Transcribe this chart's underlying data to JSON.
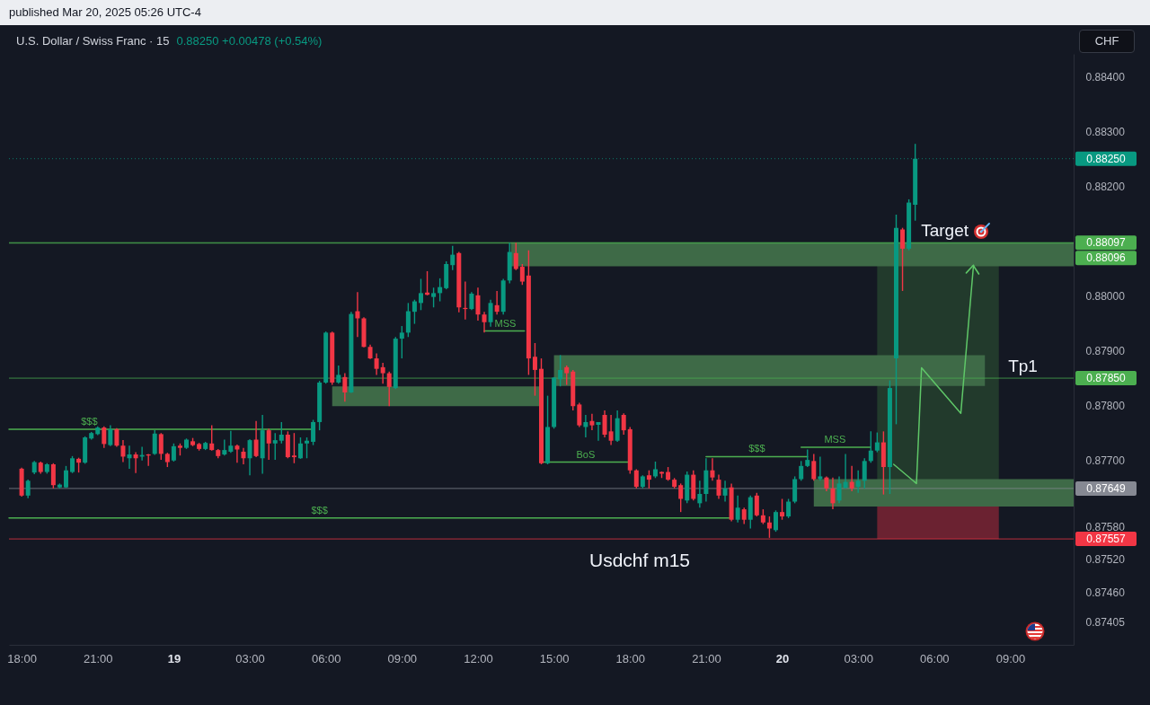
{
  "chart_data": {
    "type": "candlestick",
    "title": "U.S. Dollar / Swiss Franc · 15",
    "subtitle": "0.88250 +0.00478 (+0.54%)",
    "ylabel": "CHF",
    "xlim": [
      "2025-03-18T17:30",
      "2025-03-20T11:30"
    ],
    "ylim": [
      0.87364,
      0.88441
    ],
    "xticks": [
      {
        "value": "2025-03-18T18:00",
        "label": "18:00"
      },
      {
        "value": "2025-03-18T21:00",
        "label": "21:00"
      },
      {
        "value": "2025-03-19T00:00",
        "label": "19"
      },
      {
        "value": "2025-03-19T03:00",
        "label": "03:00"
      },
      {
        "value": "2025-03-19T06:00",
        "label": "06:00"
      },
      {
        "value": "2025-03-19T09:00",
        "label": "09:00"
      },
      {
        "value": "2025-03-19T12:00",
        "label": "12:00"
      },
      {
        "value": "2025-03-19T15:00",
        "label": "15:00"
      },
      {
        "value": "2025-03-19T18:00",
        "label": "18:00"
      },
      {
        "value": "2025-03-19T21:00",
        "label": "21:00"
      },
      {
        "value": "2025-03-20T00:00",
        "label": "20"
      },
      {
        "value": "2025-03-20T03:00",
        "label": "03:00"
      },
      {
        "value": "2025-03-20T06:00",
        "label": "06:00"
      },
      {
        "value": "2025-03-20T09:00",
        "label": "09:00"
      }
    ],
    "yticks": [
      {
        "value": 0.87405,
        "label": "0.87405"
      },
      {
        "value": 0.8746,
        "label": "0.87460"
      },
      {
        "value": 0.8752,
        "label": "0.87520"
      },
      {
        "value": 0.8758,
        "label": "0.87580"
      },
      {
        "value": 0.877,
        "label": "0.87700"
      },
      {
        "value": 0.878,
        "label": "0.87800"
      },
      {
        "value": 0.879,
        "label": "0.87900"
      },
      {
        "value": 0.88,
        "label": "0.88000"
      },
      {
        "value": 0.882,
        "label": "0.88200"
      },
      {
        "value": 0.883,
        "label": "0.88300"
      },
      {
        "value": 0.884,
        "label": "0.88400"
      }
    ],
    "x": [
      "2025-03-18T18:00",
      "2025-03-18T18:15",
      "2025-03-18T18:30",
      "2025-03-18T18:45",
      "2025-03-18T19:00",
      "2025-03-18T19:15",
      "2025-03-18T19:30",
      "2025-03-18T19:45",
      "2025-03-18T20:00",
      "2025-03-18T20:15",
      "2025-03-18T20:30",
      "2025-03-18T20:45",
      "2025-03-18T21:00",
      "2025-03-18T21:15",
      "2025-03-18T21:30",
      "2025-03-18T21:45",
      "2025-03-18T22:00",
      "2025-03-18T22:15",
      "2025-03-18T22:30",
      "2025-03-18T22:45",
      "2025-03-18T23:00",
      "2025-03-18T23:15",
      "2025-03-18T23:30",
      "2025-03-18T23:45",
      "2025-03-19T00:00",
      "2025-03-19T00:15",
      "2025-03-19T00:30",
      "2025-03-19T00:45",
      "2025-03-19T01:00",
      "2025-03-19T01:15",
      "2025-03-19T01:30",
      "2025-03-19T01:45",
      "2025-03-19T02:00",
      "2025-03-19T02:15",
      "2025-03-19T02:30",
      "2025-03-19T02:45",
      "2025-03-19T03:00",
      "2025-03-19T03:15",
      "2025-03-19T03:30",
      "2025-03-19T03:45",
      "2025-03-19T04:00",
      "2025-03-19T04:15",
      "2025-03-19T04:30",
      "2025-03-19T04:45",
      "2025-03-19T05:00",
      "2025-03-19T05:15",
      "2025-03-19T05:30",
      "2025-03-19T05:45",
      "2025-03-19T06:00",
      "2025-03-19T06:15",
      "2025-03-19T06:30",
      "2025-03-19T06:45",
      "2025-03-19T07:00",
      "2025-03-19T07:15",
      "2025-03-19T07:30",
      "2025-03-19T07:45",
      "2025-03-19T08:00",
      "2025-03-19T08:15",
      "2025-03-19T08:30",
      "2025-03-19T08:45",
      "2025-03-19T09:00",
      "2025-03-19T09:15",
      "2025-03-19T09:30",
      "2025-03-19T09:45",
      "2025-03-19T10:00",
      "2025-03-19T10:15",
      "2025-03-19T10:30",
      "2025-03-19T10:45",
      "2025-03-19T11:00",
      "2025-03-19T11:15",
      "2025-03-19T11:30",
      "2025-03-19T11:45",
      "2025-03-19T12:00",
      "2025-03-19T12:15",
      "2025-03-19T12:30",
      "2025-03-19T12:45",
      "2025-03-19T13:00",
      "2025-03-19T13:15",
      "2025-03-19T13:30",
      "2025-03-19T13:45",
      "2025-03-19T14:00",
      "2025-03-19T14:15",
      "2025-03-19T14:30",
      "2025-03-19T14:45",
      "2025-03-19T15:00",
      "2025-03-19T15:15",
      "2025-03-19T15:30",
      "2025-03-19T15:45",
      "2025-03-19T16:00",
      "2025-03-19T16:15",
      "2025-03-19T16:30",
      "2025-03-19T16:45",
      "2025-03-19T17:00",
      "2025-03-19T17:15",
      "2025-03-19T17:30",
      "2025-03-19T17:45",
      "2025-03-19T18:00",
      "2025-03-19T18:15",
      "2025-03-19T18:30",
      "2025-03-19T18:45",
      "2025-03-19T19:00",
      "2025-03-19T19:15",
      "2025-03-19T19:30",
      "2025-03-19T19:45",
      "2025-03-19T20:00",
      "2025-03-19T20:15",
      "2025-03-19T20:30",
      "2025-03-19T20:45",
      "2025-03-19T21:00",
      "2025-03-19T21:15",
      "2025-03-19T21:30",
      "2025-03-19T21:45",
      "2025-03-19T22:00",
      "2025-03-19T22:15",
      "2025-03-19T22:30",
      "2025-03-19T22:45",
      "2025-03-19T23:00",
      "2025-03-19T23:15",
      "2025-03-19T23:30",
      "2025-03-19T23:45",
      "2025-03-20T00:00",
      "2025-03-20T00:15",
      "2025-03-20T00:30",
      "2025-03-20T00:45",
      "2025-03-20T01:00",
      "2025-03-20T01:15",
      "2025-03-20T01:30",
      "2025-03-20T01:45",
      "2025-03-20T02:00",
      "2025-03-20T02:15",
      "2025-03-20T02:30",
      "2025-03-20T02:45",
      "2025-03-20T03:00",
      "2025-03-20T03:15",
      "2025-03-20T03:30",
      "2025-03-20T03:45",
      "2025-03-20T04:00",
      "2025-03-20T04:15",
      "2025-03-20T04:30",
      "2025-03-20T04:45",
      "2025-03-20T05:00",
      "2025-03-20T05:15"
    ],
    "ohlc": [
      [
        0.87685,
        0.87687,
        0.87634,
        0.87636
      ],
      [
        0.87636,
        0.87665,
        0.87631,
        0.87663
      ],
      [
        0.87678,
        0.87699,
        0.87675,
        0.87697
      ],
      [
        0.87696,
        0.87698,
        0.87676,
        0.87679
      ],
      [
        0.87679,
        0.87695,
        0.87676,
        0.87693
      ],
      [
        0.87693,
        0.87695,
        0.87649,
        0.87655
      ],
      [
        0.87651,
        0.87658,
        0.87649,
        0.87656
      ],
      [
        0.87651,
        0.8769,
        0.8765,
        0.87682
      ],
      [
        0.87679,
        0.87708,
        0.87677,
        0.87704
      ],
      [
        0.87703,
        0.87705,
        0.87678,
        0.87696
      ],
      [
        0.87696,
        0.87744,
        0.87694,
        0.87742
      ],
      [
        0.8774,
        0.87752,
        0.87738,
        0.8775
      ],
      [
        0.87748,
        0.87762,
        0.87746,
        0.8776
      ],
      [
        0.8776,
        0.87762,
        0.87723,
        0.8773
      ],
      [
        0.87728,
        0.87764,
        0.87726,
        0.87757
      ],
      [
        0.87757,
        0.87759,
        0.87725,
        0.87727
      ],
      [
        0.87727,
        0.87737,
        0.87697,
        0.87707
      ],
      [
        0.87704,
        0.87727,
        0.87685,
        0.87711
      ],
      [
        0.87711,
        0.87715,
        0.87677,
        0.87704
      ],
      [
        0.87707,
        0.87725,
        0.877,
        0.8771
      ],
      [
        0.87711,
        0.87712,
        0.8769,
        0.87709
      ],
      [
        0.87712,
        0.87755,
        0.8771,
        0.87749
      ],
      [
        0.87748,
        0.8775,
        0.87701,
        0.87712
      ],
      [
        0.87712,
        0.87714,
        0.87688,
        0.87697
      ],
      [
        0.877,
        0.87731,
        0.87698,
        0.87726
      ],
      [
        0.87727,
        0.87731,
        0.87709,
        0.87723
      ],
      [
        0.87723,
        0.8774,
        0.87721,
        0.87738
      ],
      [
        0.87735,
        0.87741,
        0.87726,
        0.87728
      ],
      [
        0.8773,
        0.87732,
        0.87718,
        0.87721
      ],
      [
        0.87721,
        0.87734,
        0.87719,
        0.87732
      ],
      [
        0.87731,
        0.87764,
        0.87718,
        0.87719
      ],
      [
        0.87719,
        0.87721,
        0.87704,
        0.87708
      ],
      [
        0.87711,
        0.87738,
        0.87709,
        0.87719
      ],
      [
        0.87716,
        0.87754,
        0.87714,
        0.87727
      ],
      [
        0.87727,
        0.87729,
        0.87696,
        0.8772
      ],
      [
        0.87716,
        0.87723,
        0.87693,
        0.87704
      ],
      [
        0.87704,
        0.87739,
        0.87673,
        0.87737
      ],
      [
        0.87738,
        0.87772,
        0.87706,
        0.87708
      ],
      [
        0.87704,
        0.87783,
        0.87676,
        0.87755
      ],
      [
        0.87755,
        0.87758,
        0.87701,
        0.87731
      ],
      [
        0.87731,
        0.8775,
        0.87701,
        0.87737
      ],
      [
        0.87736,
        0.8777,
        0.87731,
        0.87747
      ],
      [
        0.87747,
        0.87753,
        0.87704,
        0.87706
      ],
      [
        0.87709,
        0.8775,
        0.87695,
        0.87706
      ],
      [
        0.87704,
        0.87742,
        0.87703,
        0.87731
      ],
      [
        0.87731,
        0.87742,
        0.87704,
        0.87736
      ],
      [
        0.87734,
        0.87774,
        0.87728,
        0.8777
      ],
      [
        0.8777,
        0.87845,
        0.87755,
        0.87842
      ],
      [
        0.87842,
        0.87935,
        0.8784,
        0.87933
      ],
      [
        0.87933,
        0.87935,
        0.87838,
        0.87842
      ],
      [
        0.87842,
        0.87873,
        0.8784,
        0.87856
      ],
      [
        0.87852,
        0.87859,
        0.87807,
        0.87824
      ],
      [
        0.87824,
        0.87971,
        0.87823,
        0.87967
      ],
      [
        0.87972,
        0.88007,
        0.87925,
        0.87959
      ],
      [
        0.87959,
        0.87961,
        0.87906,
        0.87907
      ],
      [
        0.87907,
        0.87911,
        0.87885,
        0.87886
      ],
      [
        0.87886,
        0.87895,
        0.87856,
        0.87867
      ],
      [
        0.8787,
        0.87878,
        0.8784,
        0.87859
      ],
      [
        0.87859,
        0.87862,
        0.87799,
        0.87834
      ],
      [
        0.87832,
        0.87925,
        0.8783,
        0.87922
      ],
      [
        0.87922,
        0.87945,
        0.87886,
        0.87933
      ],
      [
        0.87933,
        0.87987,
        0.87925,
        0.87972
      ],
      [
        0.87971,
        0.87993,
        0.87949,
        0.8799
      ],
      [
        0.87987,
        0.88031,
        0.87974,
        0.88005
      ],
      [
        0.88006,
        0.88045,
        0.88001,
        0.88002
      ],
      [
        0.87998,
        0.88015,
        0.87979,
        0.88005
      ],
      [
        0.88005,
        0.88032,
        0.8799,
        0.88016
      ],
      [
        0.88014,
        0.88063,
        0.88012,
        0.88058
      ],
      [
        0.88056,
        0.88091,
        0.88047,
        0.88075
      ],
      [
        0.88078,
        0.8808,
        0.8797,
        0.87979
      ],
      [
        0.87978,
        0.88026,
        0.87957,
        0.87976
      ],
      [
        0.87976,
        0.88007,
        0.87974,
        0.88004
      ],
      [
        0.88001,
        0.88015,
        0.87955,
        0.87966
      ],
      [
        0.87966,
        0.87971,
        0.87933,
        0.87952
      ],
      [
        0.87952,
        0.87993,
        0.87944,
        0.87987
      ],
      [
        0.87983,
        0.88009,
        0.87966,
        0.87971
      ],
      [
        0.87971,
        0.88031,
        0.87966,
        0.88028
      ],
      [
        0.88028,
        0.88097,
        0.88023,
        0.8808
      ],
      [
        0.88078,
        0.88097,
        0.88047,
        0.88049
      ],
      [
        0.88053,
        0.88058,
        0.8802,
        0.88026
      ],
      [
        0.88037,
        0.88083,
        0.87856,
        0.87886
      ],
      [
        0.87889,
        0.87914,
        0.87818,
        0.87865
      ],
      [
        0.87867,
        0.87886,
        0.87693,
        0.87695
      ],
      [
        0.87695,
        0.87818,
        0.87693,
        0.87761
      ],
      [
        0.87761,
        0.87852,
        0.87758,
        0.87851
      ],
      [
        0.87848,
        0.87892,
        0.87835,
        0.87865
      ],
      [
        0.8787,
        0.87873,
        0.87838,
        0.87859
      ],
      [
        0.87862,
        0.87865,
        0.87791,
        0.87799
      ],
      [
        0.87802,
        0.87805,
        0.87761,
        0.87764
      ],
      [
        0.87761,
        0.87783,
        0.87742,
        0.8777
      ],
      [
        0.87772,
        0.87785,
        0.87755,
        0.87764
      ],
      [
        0.87765,
        0.8777,
        0.87736,
        0.8777
      ],
      [
        0.87783,
        0.87791,
        0.87742,
        0.87747
      ],
      [
        0.87753,
        0.87783,
        0.87728,
        0.87736
      ],
      [
        0.87736,
        0.87791,
        0.87734,
        0.87777
      ],
      [
        0.87783,
        0.87786,
        0.87747,
        0.87755
      ],
      [
        0.87757,
        0.87761,
        0.87676,
        0.87682
      ],
      [
        0.87682,
        0.87684,
        0.87649,
        0.87652
      ],
      [
        0.87652,
        0.87673,
        0.87649,
        0.87671
      ],
      [
        0.87673,
        0.87682,
        0.87649,
        0.87665
      ],
      [
        0.87671,
        0.87698,
        0.87668,
        0.87684
      ],
      [
        0.87679,
        0.8768,
        0.87668,
        0.87676
      ],
      [
        0.87679,
        0.87688,
        0.87663,
        0.87665
      ],
      [
        0.87665,
        0.87668,
        0.87649,
        0.87652
      ],
      [
        0.87655,
        0.87658,
        0.87606,
        0.8763
      ],
      [
        0.87627,
        0.8768,
        0.87622,
        0.87674
      ],
      [
        0.87674,
        0.87682,
        0.87627,
        0.8763
      ],
      [
        0.87622,
        0.87663,
        0.87614,
        0.87639
      ],
      [
        0.87639,
        0.87704,
        0.87625,
        0.87682
      ],
      [
        0.87682,
        0.87704,
        0.87663,
        0.87669
      ],
      [
        0.87665,
        0.87674,
        0.8763,
        0.87636
      ],
      [
        0.87636,
        0.87663,
        0.87625,
        0.87649
      ],
      [
        0.87651,
        0.87658,
        0.87589,
        0.87592
      ],
      [
        0.87592,
        0.87636,
        0.87587,
        0.87614
      ],
      [
        0.87611,
        0.87614,
        0.87584,
        0.87592
      ],
      [
        0.87592,
        0.87636,
        0.87576,
        0.87633
      ],
      [
        0.87636,
        0.87641,
        0.87598,
        0.876
      ],
      [
        0.876,
        0.87611,
        0.87584,
        0.87587
      ],
      [
        0.87587,
        0.87598,
        0.87559,
        0.87576
      ],
      [
        0.87573,
        0.87609,
        0.8757,
        0.87606
      ],
      [
        0.87606,
        0.8763,
        0.87592,
        0.87598
      ],
      [
        0.87598,
        0.8763,
        0.87595,
        0.87625
      ],
      [
        0.87625,
        0.87671,
        0.87622,
        0.87666
      ],
      [
        0.87666,
        0.87699,
        0.87663,
        0.8769
      ],
      [
        0.8769,
        0.8772,
        0.87688,
        0.87701
      ],
      [
        0.87699,
        0.87712,
        0.87663,
        0.87666
      ],
      [
        0.87666,
        0.87707,
        0.87663,
        0.87671
      ],
      [
        0.87669,
        0.87671,
        0.87644,
        0.87649
      ],
      [
        0.87649,
        0.87669,
        0.87611,
        0.87622
      ],
      [
        0.87627,
        0.87671,
        0.87622,
        0.87658
      ],
      [
        0.8765,
        0.87712,
        0.87649,
        0.87661
      ],
      [
        0.87661,
        0.8769,
        0.87644,
        0.87649
      ],
      [
        0.87652,
        0.87682,
        0.87641,
        0.87663
      ],
      [
        0.87663,
        0.87704,
        0.87649,
        0.87699
      ],
      [
        0.87699,
        0.87753,
        0.87696,
        0.87718
      ],
      [
        0.87718,
        0.87751,
        0.87715,
        0.87733
      ],
      [
        0.87733,
        0.87753,
        0.87638,
        0.87688
      ],
      [
        0.87688,
        0.87846,
        0.87639,
        0.87832
      ],
      [
        0.87886,
        0.88148,
        0.87766,
        0.88124
      ],
      [
        0.88121,
        0.88124,
        0.88009,
        0.88086
      ],
      [
        0.88086,
        0.88176,
        0.88083,
        0.8817
      ],
      [
        0.88166,
        0.88277,
        0.88137,
        0.8825
      ]
    ],
    "colors": [
      "#f23645",
      "#089981",
      "#089981",
      "#f23645",
      "#089981",
      "#f23645",
      "#089981",
      "#089981",
      "#089981",
      "#f23645",
      "#089981",
      "#089981",
      "#089981",
      "#f23645",
      "#089981",
      "#f23645",
      "#f23645",
      "#089981",
      "#f23645",
      "#089981",
      "#f23645",
      "#089981",
      "#f23645",
      "#f23645",
      "#089981",
      "#f23645",
      "#089981",
      "#f23645",
      "#f23645",
      "#089981",
      "#f23645",
      "#f23645",
      "#089981",
      "#089981",
      "#f23645",
      "#f23645",
      "#089981",
      "#f23645",
      "#089981",
      "#f23645",
      "#089981",
      "#089981",
      "#f23645",
      "#f23645",
      "#089981",
      "#089981",
      "#089981",
      "#089981",
      "#089981",
      "#f23645",
      "#089981",
      "#f23645",
      "#089981",
      "#f23645",
      "#f23645",
      "#f23645",
      "#f23645",
      "#f23645",
      "#f23645",
      "#089981",
      "#089981",
      "#089981",
      "#089981",
      "#089981",
      "#f23645",
      "#089981",
      "#089981",
      "#089981",
      "#089981",
      "#f23645",
      "#f23645",
      "#089981",
      "#f23645",
      "#f23645",
      "#089981",
      "#f23645",
      "#089981",
      "#089981",
      "#f23645",
      "#f23645",
      "#f23645",
      "#f23645",
      "#f23645",
      "#089981",
      "#089981",
      "#089981",
      "#f23645",
      "#f23645",
      "#f23645",
      "#089981",
      "#f23645",
      "#089981",
      "#f23645",
      "#f23645",
      "#089981",
      "#f23645",
      "#f23645",
      "#f23645",
      "#089981",
      "#f23645",
      "#089981",
      "#f23645",
      "#f23645",
      "#f23645",
      "#f23645",
      "#089981",
      "#f23645",
      "#089981",
      "#089981",
      "#f23645",
      "#f23645",
      "#089981",
      "#f23645",
      "#089981",
      "#f23645",
      "#089981",
      "#f23645",
      "#f23645",
      "#f23645",
      "#089981",
      "#f23645",
      "#089981",
      "#089981",
      "#089981",
      "#089981",
      "#f23645",
      "#089981",
      "#f23645",
      "#f23645",
      "#089981",
      "#089981",
      "#f23645",
      "#089981",
      "#089981",
      "#089981",
      "#089981",
      "#f23645",
      "#089981",
      "#089981",
      "#f23645",
      "#089981",
      "#089981"
    ],
    "series": [
      {
        "type": "area",
        "color": "#223a2c",
        "x": [
          "2025-03-20T03:45",
          "2025-03-20T08:33"
        ],
        "values": [
          null,
          null
        ],
        "lower": [
          0.87649,
          0.87649
        ],
        "upper": [
          0.88097,
          0.88097
        ]
      },
      {
        "type": "area",
        "color": "#6b2231",
        "x": [
          "2025-03-20T03:45",
          "2025-03-20T08:33"
        ],
        "values": [
          null,
          null
        ],
        "lower": [
          0.87557,
          0.87557
        ],
        "upper": [
          0.87649,
          0.87649
        ]
      },
      {
        "type": "area",
        "color": "#3e6a47",
        "x": [
          "2025-03-19T06:15",
          "2025-03-19T14:25"
        ],
        "values": [
          null,
          null
        ],
        "lower": [
          0.87799,
          0.87799
        ],
        "upper": [
          0.87835,
          0.87835
        ]
      },
      {
        "type": "area",
        "color": "#3e6a47",
        "x": [
          "2025-03-19T13:18",
          "2025-03-20T11:30"
        ],
        "values": [
          null,
          null
        ],
        "lower": [
          0.88054,
          0.88054
        ],
        "upper": [
          0.88097,
          0.88097
        ]
      },
      {
        "type": "area",
        "color": "#3e6a47",
        "x": [
          "2025-03-19T15:00",
          "2025-03-20T08:00"
        ],
        "values": [
          null,
          null
        ],
        "lower": [
          0.87836,
          0.87836
        ],
        "upper": [
          0.87892,
          0.87892
        ]
      },
      {
        "type": "area",
        "color": "#3e6a47",
        "x": [
          "2025-03-20T01:15",
          "2025-03-20T11:30"
        ],
        "values": [
          null,
          null
        ],
        "lower": [
          0.87616,
          0.87616
        ],
        "upper": [
          0.87666,
          0.87666
        ]
      },
      {
        "type": "line",
        "color": "#4caf50",
        "x": [
          "2025-03-18T17:30",
          "2025-03-19T05:30"
        ],
        "values": [
          0.87757,
          0.87757
        ]
      },
      {
        "type": "line",
        "color": "#4caf50",
        "x": [
          "2025-03-18T17:30",
          "2025-03-19T22:00"
        ],
        "values": [
          0.87595,
          0.87595
        ]
      },
      {
        "type": "line",
        "color": "#4caf50",
        "x": [
          "2025-03-19T12:15",
          "2025-03-19T13:50"
        ],
        "values": [
          0.87936,
          0.87936
        ]
      },
      {
        "type": "line",
        "color": "#4caf50",
        "x": [
          "2025-03-19T14:30",
          "2025-03-19T18:00"
        ],
        "values": [
          0.87697,
          0.87697
        ]
      },
      {
        "type": "line",
        "color": "#4caf50",
        "x": [
          "2025-03-19T21:00",
          "2025-03-20T01:00"
        ],
        "values": [
          0.87707,
          0.87707
        ]
      },
      {
        "type": "line",
        "color": "#4caf50",
        "x": [
          "2025-03-20T00:45",
          "2025-03-20T03:30"
        ],
        "values": [
          0.87724,
          0.87724
        ]
      },
      {
        "type": "line",
        "color": "#5fc768",
        "x": [
          "2025-03-20T04:24",
          "2025-03-20T05:18",
          "2025-03-20T05:30",
          "2025-03-20T07:03",
          "2025-03-20T07:33"
        ],
        "values": [
          0.87693,
          0.87658,
          0.87869,
          0.87786,
          0.88056
        ]
      }
    ],
    "ref_lines": [
      {
        "axis": "y",
        "value": 0.8825,
        "label": "0.88250",
        "color": "#089981",
        "line_style": "dotted"
      },
      {
        "axis": "y",
        "value": 0.88097,
        "label": "0.88097",
        "color": "#4caf50"
      },
      {
        "axis": "y",
        "value": 0.88096,
        "label": "0.88096",
        "color": "#4caf50"
      },
      {
        "axis": "y",
        "value": 0.8785,
        "label": "0.87850",
        "color": "#4caf50"
      },
      {
        "axis": "y",
        "value": 0.87649,
        "label": "0.87649",
        "color": "#868993"
      },
      {
        "axis": "y",
        "value": 0.87557,
        "label": "0.87557",
        "color": "#f23645"
      }
    ],
    "annotations": [
      "published Mar 20, 2025 05:26 UTC-4",
      {
        "text": "$$$",
        "x": "2025-03-18T20:40",
        "y": 0.87757
      },
      {
        "text": "$$$",
        "x": "2025-03-19T05:45",
        "y": 0.87595
      },
      {
        "text": "MSS",
        "x": "2025-03-19T13:05",
        "y": 0.87936
      },
      {
        "text": "BoS",
        "x": "2025-03-19T16:15",
        "y": 0.87697
      },
      {
        "text": "$$$",
        "x": "2025-03-19T23:00",
        "y": 0.87707
      },
      {
        "text": "MSS",
        "x": "2025-03-20T02:05",
        "y": 0.87724
      },
      {
        "text": "Target",
        "x": "2025-03-20T06:25",
        "y": 0.88097
      },
      {
        "text": "Tp1",
        "x": "2025-03-20T09:30",
        "y": 0.8785
      },
      "Usdchf m15"
    ]
  }
}
